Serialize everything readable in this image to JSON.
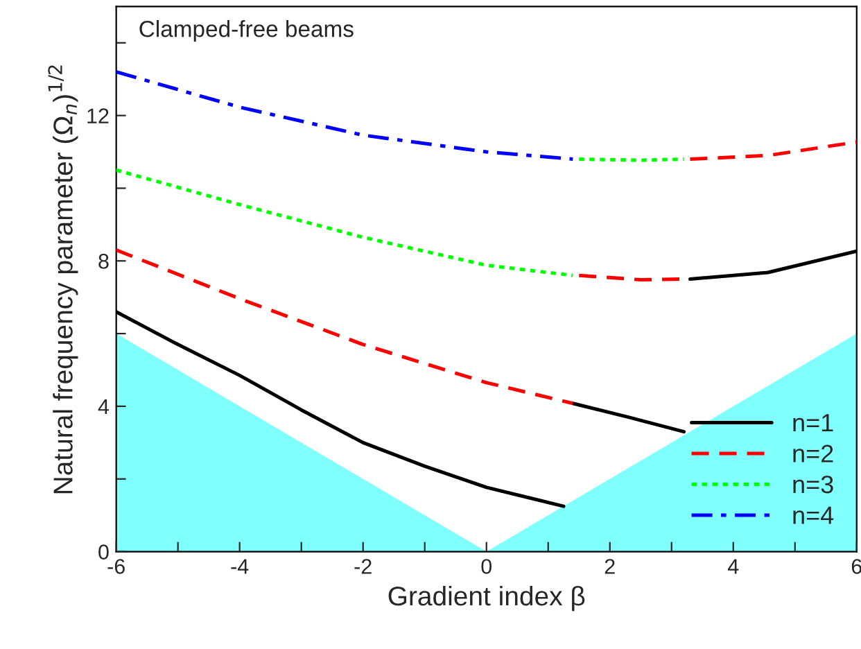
{
  "chart_data": {
    "type": "line",
    "title": "Clamped-free beams",
    "xlabel": "Gradient index β",
    "ylabel": "Natural frequency parameter (Ω$_{n}$)$^{1/2}$",
    "xlim": [
      -6,
      6
    ],
    "ylim": [
      0,
      15
    ],
    "xticks": [
      -6,
      {
        "value": -5,
        "label": null
      },
      -4,
      {
        "value": -3,
        "label": null
      },
      -2,
      {
        "value": -1,
        "label": null
      },
      0,
      {
        "value": 1,
        "label": null
      },
      2,
      {
        "value": 3,
        "label": null
      },
      4,
      {
        "value": 5,
        "label": null
      },
      6
    ],
    "yticks": [
      0,
      {
        "value": 2,
        "label": null
      },
      4,
      {
        "value": 6,
        "label": null
      },
      8,
      {
        "value": 10,
        "label": null
      },
      12,
      {
        "value": 14,
        "label": null
      }
    ],
    "grid": false,
    "legend": "bottom right",
    "series": [
      {
        "type": "area",
        "color": "#80ffff",
        "x": [
          -6,
          0,
          6
        ],
        "values": [
          6,
          0,
          6
        ]
      },
      {
        "name": "n=1",
        "color": "#000000",
        "line_style": "solid",
        "x": [
          -6,
          -5,
          -4,
          -3,
          -2,
          -1,
          0,
          1.25,
          1.3,
          1.4,
          2.3,
          3.2,
          3.25,
          3.3,
          4.56,
          6
        ],
        "values": [
          6.6,
          5.7,
          4.85,
          3.9,
          3.0,
          2.35,
          1.77,
          1.25,
          null,
          4.08,
          3.7,
          3.3,
          null,
          7.5,
          7.68,
          8.27
        ]
      },
      {
        "name": "n=2",
        "color": "#ff0000",
        "line_style": "dashed",
        "x": [
          -6,
          -4,
          -2,
          0,
          1.4,
          1.45,
          1.5,
          2.5,
          3.2,
          3.25,
          3.3,
          4.56,
          6
        ],
        "values": [
          8.3,
          6.96,
          5.7,
          4.65,
          4.08,
          null,
          7.6,
          7.48,
          7.5,
          null,
          10.8,
          10.9,
          11.27
        ]
      },
      {
        "name": "n=3",
        "color": "#00ff00",
        "line_style": "dotted",
        "x": [
          -6,
          -4,
          -2,
          0,
          1.4,
          1.45,
          1.5,
          2.5,
          3.2
        ],
        "values": [
          10.5,
          9.55,
          8.65,
          7.88,
          7.6,
          null,
          10.8,
          10.77,
          10.8
        ]
      },
      {
        "name": "n=4",
        "color": "#0000ff",
        "line_style": "dashdot",
        "x": [
          -6,
          -4,
          -2,
          0,
          1.4
        ],
        "values": [
          13.2,
          12.23,
          11.46,
          11.0,
          10.8
        ]
      }
    ]
  }
}
